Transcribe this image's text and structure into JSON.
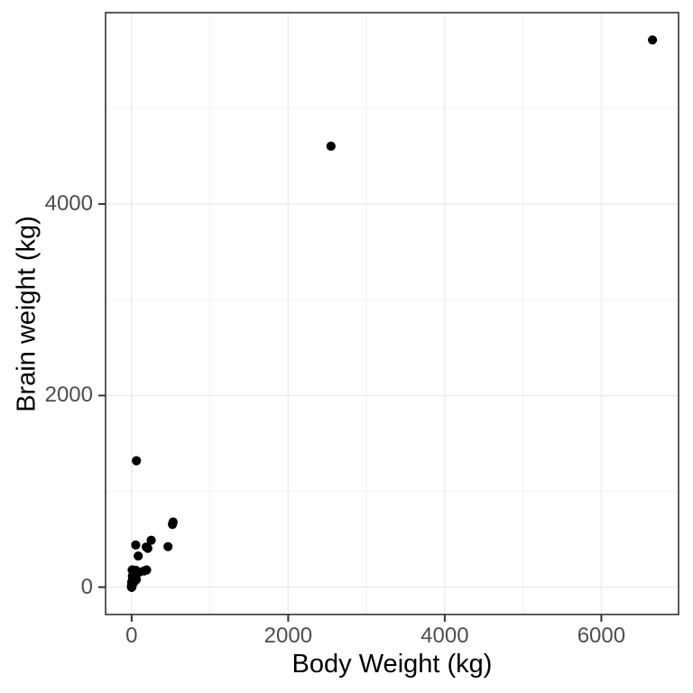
{
  "chart_data": {
    "type": "scatter",
    "title": "",
    "xlabel": "Body Weight (kg)",
    "ylabel": "Brain weight (kg)",
    "x_ticks": [
      0,
      2000,
      4000,
      6000
    ],
    "y_ticks": [
      0,
      2000,
      4000
    ],
    "x_minor_ticks": [
      1000,
      3000,
      5000
    ],
    "y_minor_ticks": [
      1000,
      3000,
      5000
    ],
    "xlim": [
      -332.7,
      6986.7
    ],
    "ylim": [
      -285.6,
      5997.6
    ],
    "grid": "major+minor",
    "legend": "none",
    "theme": {
      "panel_background": "#ffffff",
      "panel_border": "#333333",
      "grid_major_color": "#ebebeb",
      "grid_minor_color": "#f1f1f1",
      "tick_mark_color": "#333333",
      "tick_label_color": "#4d4d4d",
      "axis_title_color": "#000000",
      "point_color": "#000000"
    },
    "points": [
      [
        6654,
        5712
      ],
      [
        1,
        6.6
      ],
      [
        3.385,
        44.5
      ],
      [
        0.92,
        5.7
      ],
      [
        2547,
        4603
      ],
      [
        10.55,
        179.5
      ],
      [
        0.023,
        0.3
      ],
      [
        160,
        169
      ],
      [
        3.3,
        25.6
      ],
      [
        52.16,
        440
      ],
      [
        0.425,
        6.4
      ],
      [
        465,
        423
      ],
      [
        0.55,
        2.4
      ],
      [
        187.1,
        419
      ],
      [
        0.075,
        1.2
      ],
      [
        3,
        25
      ],
      [
        0.785,
        3.5
      ],
      [
        0.2,
        5
      ],
      [
        1.41,
        17.5
      ],
      [
        60,
        81
      ],
      [
        529,
        680
      ],
      [
        27.66,
        115
      ],
      [
        0.12,
        1
      ],
      [
        207,
        406
      ],
      [
        36.33,
        119.5
      ],
      [
        85,
        325
      ],
      [
        0.101,
        4
      ],
      [
        1.04,
        5.5
      ],
      [
        521,
        655
      ],
      [
        100,
        157
      ],
      [
        35,
        56
      ],
      [
        0.005,
        0.14
      ],
      [
        0.01,
        0.25
      ],
      [
        62,
        1320
      ],
      [
        0.122,
        3
      ],
      [
        1.35,
        8.1
      ],
      [
        0.023,
        0.4
      ],
      [
        0.048,
        0.33
      ],
      [
        1.7,
        6.3
      ],
      [
        3.5,
        10.8
      ],
      [
        250,
        490
      ],
      [
        0.48,
        15.5
      ],
      [
        10,
        115
      ],
      [
        1.62,
        11.4
      ],
      [
        192,
        180
      ],
      [
        2.5,
        12.1
      ],
      [
        4.288,
        39.2
      ],
      [
        0.28,
        1.9
      ],
      [
        4.235,
        50.4
      ],
      [
        6.8,
        179
      ],
      [
        0.75,
        12.3
      ],
      [
        3.6,
        21
      ],
      [
        14.83,
        98.2
      ],
      [
        55.5,
        175
      ],
      [
        1.4,
        12.5
      ],
      [
        0.06,
        1
      ],
      [
        0.9,
        2.6
      ],
      [
        2,
        12.3
      ],
      [
        0.104,
        2.5
      ],
      [
        4.19,
        58
      ],
      [
        3.5,
        3.9
      ],
      [
        4.05,
        17
      ]
    ]
  }
}
